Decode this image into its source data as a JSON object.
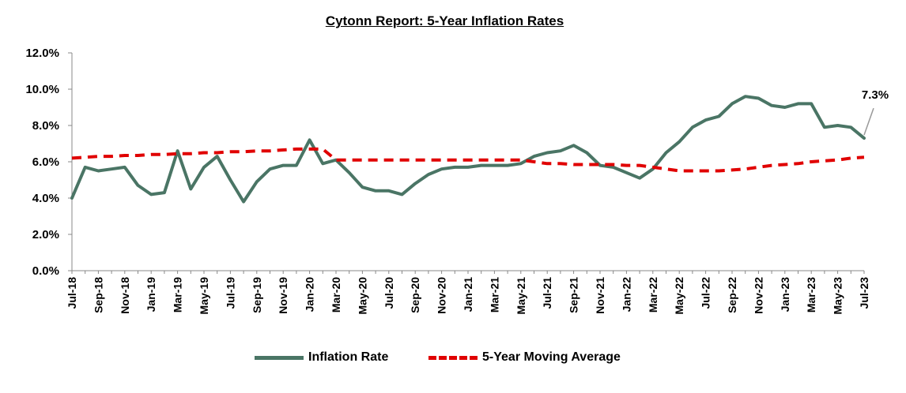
{
  "chart_data": {
    "type": "line",
    "title": "Cytonn Report: 5-Year Inflation Rates",
    "xlabel": "",
    "ylabel": "",
    "ylim": [
      0,
      12
    ],
    "y_ticks": [
      "12.0%",
      "10.0%",
      "8.0%",
      "6.0%",
      "4.0%",
      "2.0%",
      "0.0%"
    ],
    "x_tick_labels": [
      "Jul-18",
      "Sep-18",
      "Nov-18",
      "Jan-19",
      "Mar-19",
      "May-19",
      "Jul-19",
      "Sep-19",
      "Nov-19",
      "Jan-20",
      "Mar-20",
      "May-20",
      "Jul-20",
      "Sep-20",
      "Nov-20",
      "Jan-21",
      "Mar-21",
      "May-21",
      "Jul-21",
      "Sep-21",
      "Nov-21",
      "Jan-22",
      "Mar-22",
      "May-22",
      "Jul-22",
      "Sep-22",
      "Nov-22",
      "Jan-23",
      "Mar-23",
      "May-23",
      "Jul-23"
    ],
    "x": [
      "Jul-18",
      "Aug-18",
      "Sep-18",
      "Oct-18",
      "Nov-18",
      "Dec-18",
      "Jan-19",
      "Feb-19",
      "Mar-19",
      "Apr-19",
      "May-19",
      "Jun-19",
      "Jul-19",
      "Aug-19",
      "Sep-19",
      "Oct-19",
      "Nov-19",
      "Dec-19",
      "Jan-20",
      "Feb-20",
      "Mar-20",
      "Apr-20",
      "May-20",
      "Jun-20",
      "Jul-20",
      "Aug-20",
      "Sep-20",
      "Oct-20",
      "Nov-20",
      "Dec-20",
      "Jan-21",
      "Feb-21",
      "Mar-21",
      "Apr-21",
      "May-21",
      "Jun-21",
      "Jul-21",
      "Aug-21",
      "Sep-21",
      "Oct-21",
      "Nov-21",
      "Dec-21",
      "Jan-22",
      "Feb-22",
      "Mar-22",
      "Apr-22",
      "May-22",
      "Jun-22",
      "Jul-22",
      "Aug-22",
      "Sep-22",
      "Oct-22",
      "Nov-22",
      "Dec-22",
      "Jan-23",
      "Feb-23",
      "Mar-23",
      "Apr-23",
      "May-23",
      "Jun-23",
      "Jul-23"
    ],
    "series": [
      {
        "name": "Inflation Rate",
        "color": "#4a7565",
        "style": "solid",
        "values": [
          4.0,
          5.7,
          5.5,
          5.6,
          5.7,
          4.7,
          4.2,
          4.3,
          6.6,
          4.5,
          5.7,
          6.3,
          5.0,
          3.8,
          4.9,
          5.6,
          5.8,
          5.8,
          7.2,
          5.9,
          6.1,
          5.4,
          4.6,
          4.4,
          4.4,
          4.2,
          4.8,
          5.3,
          5.6,
          5.7,
          5.7,
          5.8,
          5.8,
          5.8,
          5.9,
          6.3,
          6.5,
          6.6,
          6.9,
          6.5,
          5.8,
          5.7,
          5.4,
          5.1,
          5.6,
          6.5,
          7.1,
          7.9,
          8.3,
          8.5,
          9.2,
          9.6,
          9.5,
          9.1,
          9.0,
          9.2,
          9.2,
          7.9,
          8.0,
          7.9,
          7.3
        ]
      },
      {
        "name": "5-Year Moving Average",
        "color": "#e00000",
        "style": "dashed",
        "values": [
          6.2,
          6.25,
          6.3,
          6.3,
          6.35,
          6.35,
          6.4,
          6.4,
          6.45,
          6.45,
          6.5,
          6.5,
          6.55,
          6.55,
          6.6,
          6.6,
          6.65,
          6.7,
          6.7,
          6.7,
          6.1,
          6.1,
          6.1,
          6.1,
          6.1,
          6.1,
          6.1,
          6.1,
          6.1,
          6.1,
          6.1,
          6.1,
          6.1,
          6.1,
          6.1,
          6.0,
          5.9,
          5.9,
          5.85,
          5.85,
          5.85,
          5.85,
          5.8,
          5.8,
          5.7,
          5.6,
          5.5,
          5.5,
          5.5,
          5.5,
          5.55,
          5.6,
          5.7,
          5.8,
          5.85,
          5.9,
          6.0,
          6.05,
          6.1,
          6.2,
          6.25
        ]
      }
    ],
    "annotations": [
      {
        "text": "7.3%",
        "series": "Inflation Rate",
        "x": "Jul-23"
      }
    ],
    "grid": false,
    "legend": "bottom"
  }
}
